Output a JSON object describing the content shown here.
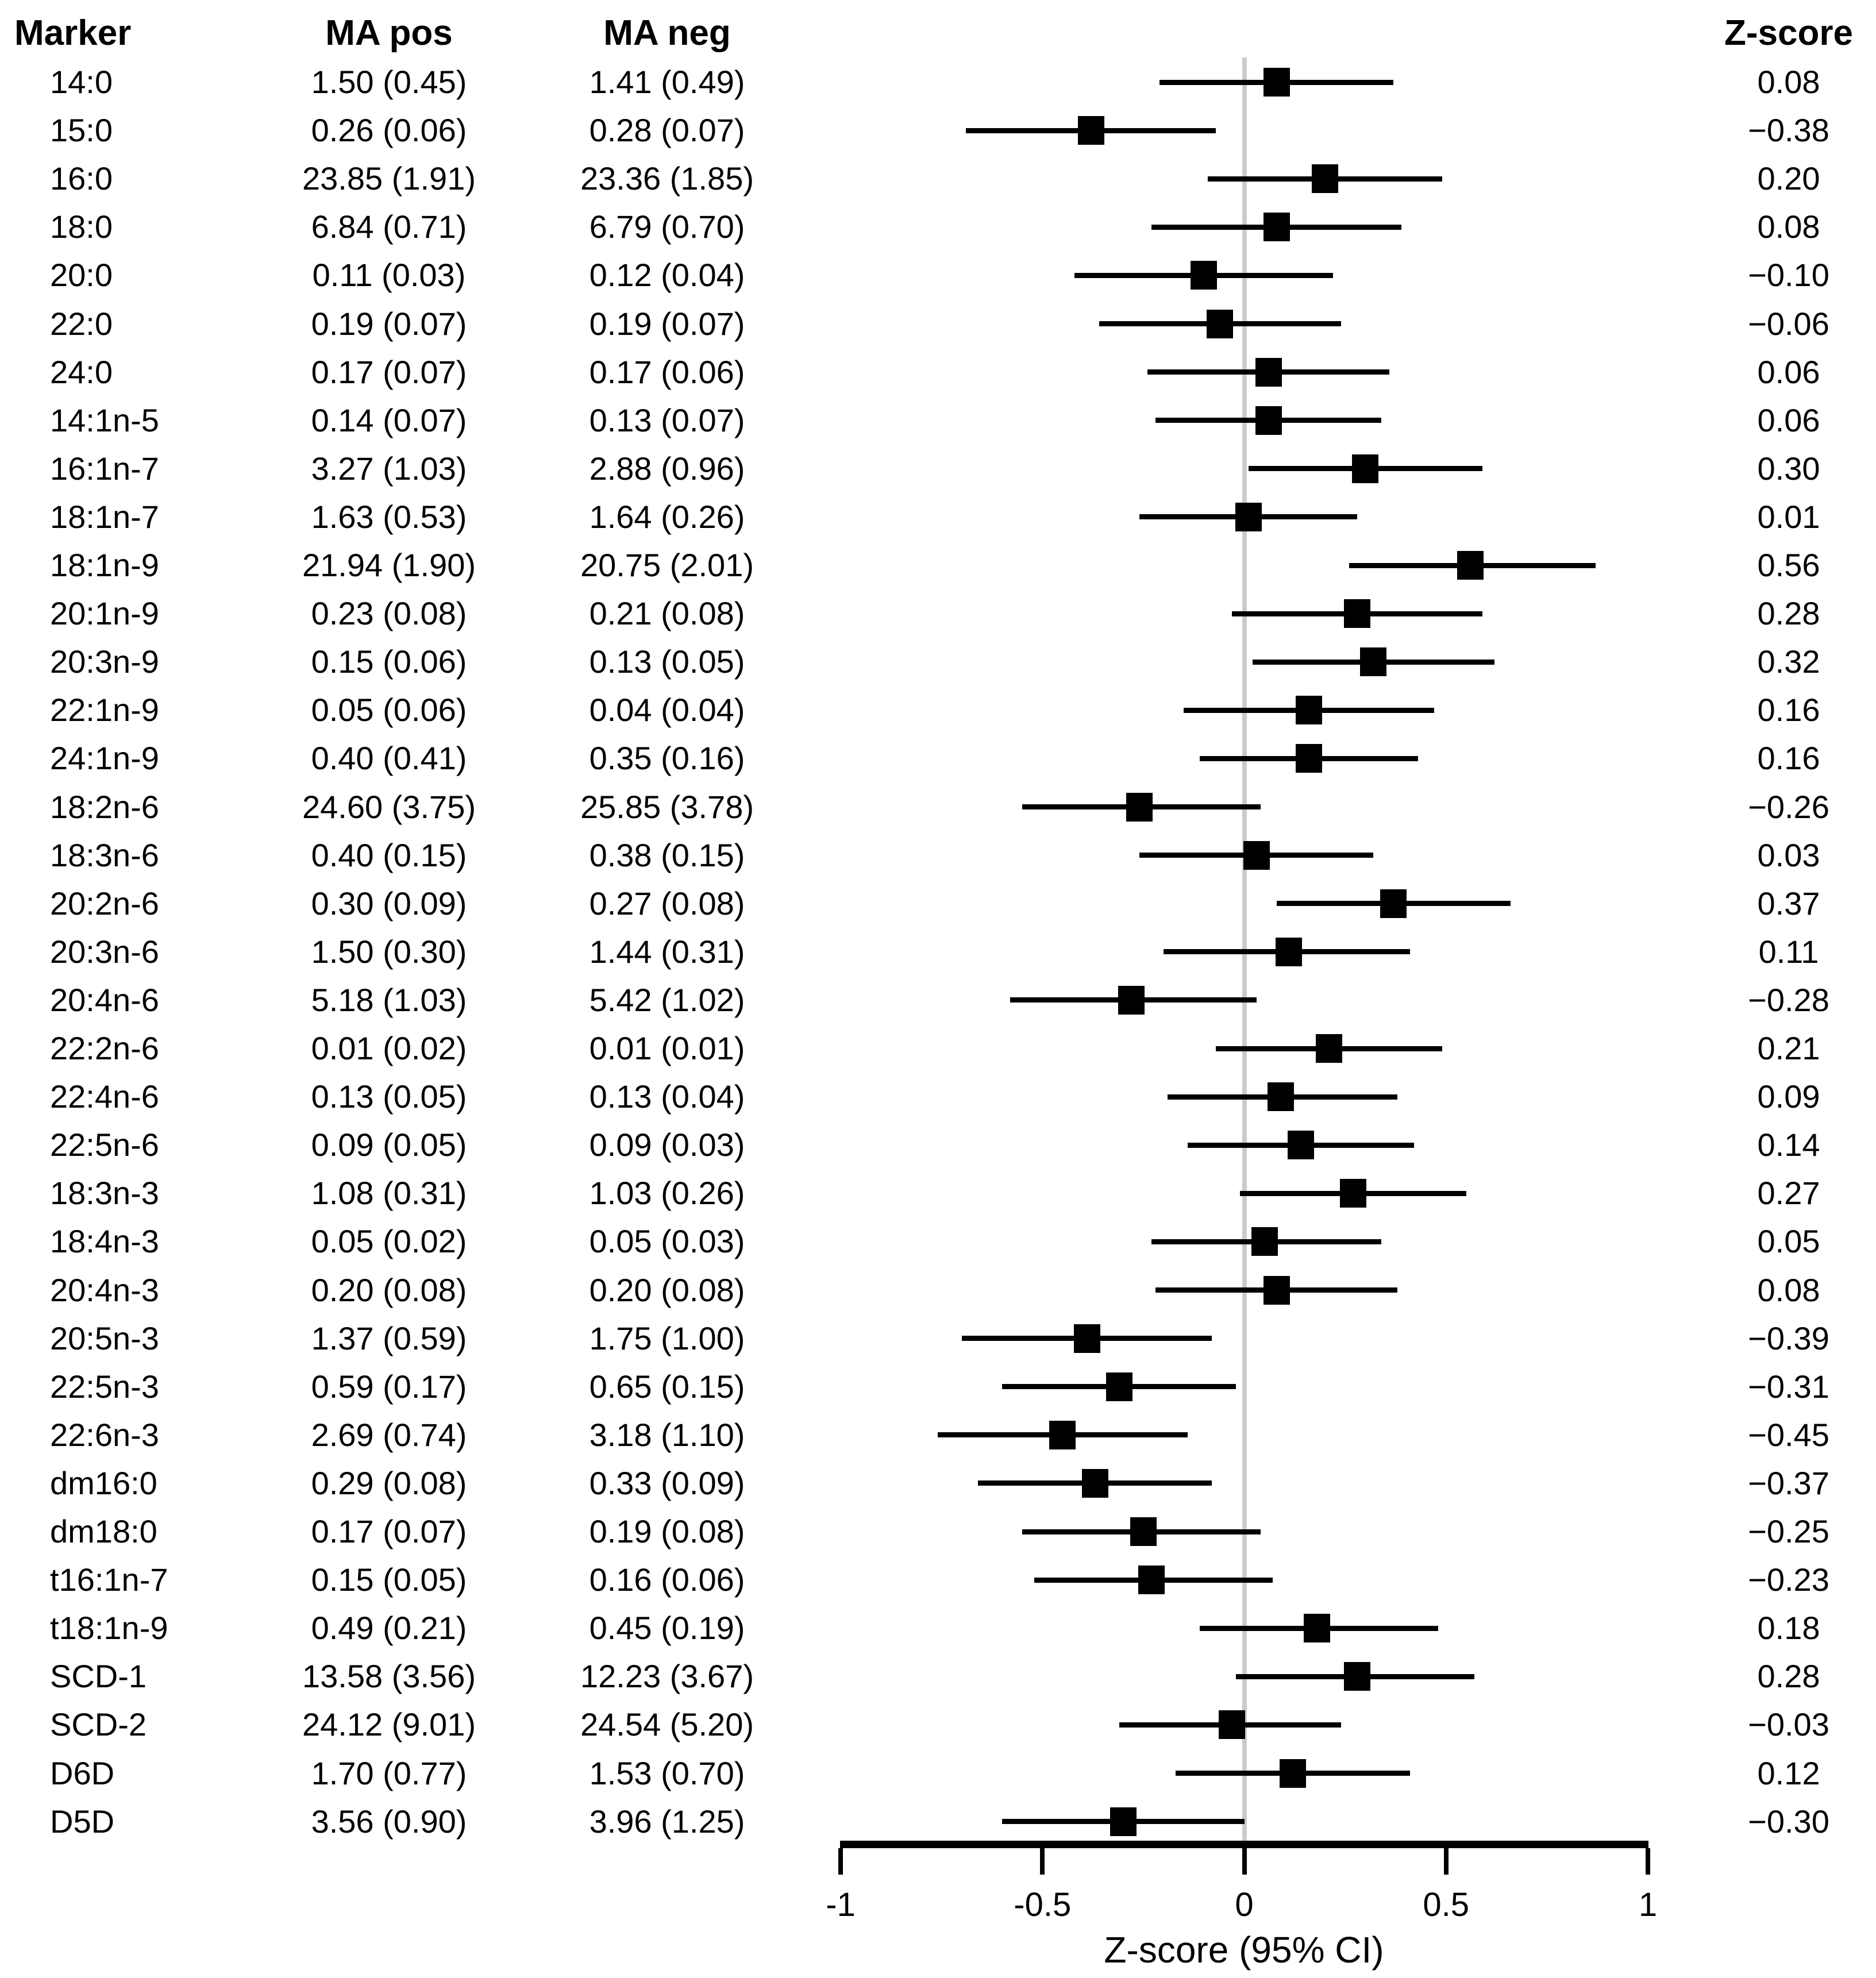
{
  "header": {
    "marker": "Marker",
    "ma_pos": "MA pos",
    "ma_neg": "MA neg",
    "z_score": "Z-score"
  },
  "colors": {
    "text": "#000000",
    "square": "#000000",
    "ci_line": "#000000",
    "zero_line": "#cbcbcb",
    "axis": "#000000"
  },
  "chart_data": {
    "type": "forest",
    "columns": [
      "Marker",
      "MA pos",
      "MA neg",
      "Z-score"
    ],
    "xlabel": "Z-score (95% CI)",
    "xlim": [
      -1,
      1
    ],
    "zero_line": 0,
    "grid": false,
    "xticks": [
      {
        "value": -1,
        "label": "-1"
      },
      {
        "value": -0.5,
        "label": "-0.5"
      },
      {
        "value": 0,
        "label": "0"
      },
      {
        "value": 0.5,
        "label": "0.5"
      },
      {
        "value": 1,
        "label": "1"
      }
    ],
    "rows": [
      {
        "marker": "14:0",
        "ma_pos": "1.50 (0.45)",
        "ma_neg": "1.41 (0.49)",
        "z": 0.08,
        "ci": [
          -0.21,
          0.37
        ],
        "z_label": "0.08"
      },
      {
        "marker": "15:0",
        "ma_pos": "0.26 (0.06)",
        "ma_neg": "0.28 (0.07)",
        "z": -0.38,
        "ci": [
          -0.69,
          -0.07
        ],
        "z_label": "−0.38"
      },
      {
        "marker": "16:0",
        "ma_pos": "23.85 (1.91)",
        "ma_neg": "23.36 (1.85)",
        "z": 0.2,
        "ci": [
          -0.09,
          0.49
        ],
        "z_label": "0.20"
      },
      {
        "marker": "18:0",
        "ma_pos": "6.84 (0.71)",
        "ma_neg": "6.79 (0.70)",
        "z": 0.08,
        "ci": [
          -0.23,
          0.39
        ],
        "z_label": "0.08"
      },
      {
        "marker": "20:0",
        "ma_pos": "0.11 (0.03)",
        "ma_neg": "0.12 (0.04)",
        "z": -0.1,
        "ci": [
          -0.42,
          0.22
        ],
        "z_label": "−0.10"
      },
      {
        "marker": "22:0",
        "ma_pos": "0.19 (0.07)",
        "ma_neg": "0.19 (0.07)",
        "z": -0.06,
        "ci": [
          -0.36,
          0.24
        ],
        "z_label": "−0.06"
      },
      {
        "marker": "24:0",
        "ma_pos": "0.17 (0.07)",
        "ma_neg": "0.17 (0.06)",
        "z": 0.06,
        "ci": [
          -0.24,
          0.36
        ],
        "z_label": "0.06"
      },
      {
        "marker": "14:1n-5",
        "ma_pos": "0.14 (0.07)",
        "ma_neg": "0.13 (0.07)",
        "z": 0.06,
        "ci": [
          -0.22,
          0.34
        ],
        "z_label": "0.06"
      },
      {
        "marker": "16:1n-7",
        "ma_pos": "3.27 (1.03)",
        "ma_neg": "2.88 (0.96)",
        "z": 0.3,
        "ci": [
          0.01,
          0.59
        ],
        "z_label": "0.30"
      },
      {
        "marker": "18:1n-7",
        "ma_pos": "1.63 (0.53)",
        "ma_neg": "1.64 (0.26)",
        "z": 0.01,
        "ci": [
          -0.26,
          0.28
        ],
        "z_label": "0.01"
      },
      {
        "marker": "18:1n-9",
        "ma_pos": "21.94 (1.90)",
        "ma_neg": "20.75 (2.01)",
        "z": 0.56,
        "ci": [
          0.26,
          0.87
        ],
        "z_label": "0.56"
      },
      {
        "marker": "20:1n-9",
        "ma_pos": "0.23 (0.08)",
        "ma_neg": "0.21 (0.08)",
        "z": 0.28,
        "ci": [
          -0.03,
          0.59
        ],
        "z_label": "0.28"
      },
      {
        "marker": "20:3n-9",
        "ma_pos": "0.15 (0.06)",
        "ma_neg": "0.13 (0.05)",
        "z": 0.32,
        "ci": [
          0.02,
          0.62
        ],
        "z_label": "0.32"
      },
      {
        "marker": "22:1n-9",
        "ma_pos": "0.05 (0.06)",
        "ma_neg": "0.04 (0.04)",
        "z": 0.16,
        "ci": [
          -0.15,
          0.47
        ],
        "z_label": "0.16"
      },
      {
        "marker": "24:1n-9",
        "ma_pos": "0.40 (0.41)",
        "ma_neg": "0.35 (0.16)",
        "z": 0.16,
        "ci": [
          -0.11,
          0.43
        ],
        "z_label": "0.16"
      },
      {
        "marker": "18:2n-6",
        "ma_pos": "24.60 (3.75)",
        "ma_neg": "25.85 (3.78)",
        "z": -0.26,
        "ci": [
          -0.55,
          0.04
        ],
        "z_label": "−0.26"
      },
      {
        "marker": "18:3n-6",
        "ma_pos": "0.40 (0.15)",
        "ma_neg": "0.38 (0.15)",
        "z": 0.03,
        "ci": [
          -0.26,
          0.32
        ],
        "z_label": "0.03"
      },
      {
        "marker": "20:2n-6",
        "ma_pos": "0.30 (0.09)",
        "ma_neg": "0.27 (0.08)",
        "z": 0.37,
        "ci": [
          0.08,
          0.66
        ],
        "z_label": "0.37"
      },
      {
        "marker": "20:3n-6",
        "ma_pos": "1.50 (0.30)",
        "ma_neg": "1.44 (0.31)",
        "z": 0.11,
        "ci": [
          -0.2,
          0.41
        ],
        "z_label": "0.11"
      },
      {
        "marker": "20:4n-6",
        "ma_pos": "5.18 (1.03)",
        "ma_neg": "5.42 (1.02)",
        "z": -0.28,
        "ci": [
          -0.58,
          0.03
        ],
        "z_label": "−0.28"
      },
      {
        "marker": "22:2n-6",
        "ma_pos": "0.01 (0.02)",
        "ma_neg": "0.01 (0.01)",
        "z": 0.21,
        "ci": [
          -0.07,
          0.49
        ],
        "z_label": "0.21"
      },
      {
        "marker": "22:4n-6",
        "ma_pos": "0.13 (0.05)",
        "ma_neg": "0.13 (0.04)",
        "z": 0.09,
        "ci": [
          -0.19,
          0.38
        ],
        "z_label": "0.09"
      },
      {
        "marker": "22:5n-6",
        "ma_pos": "0.09 (0.05)",
        "ma_neg": "0.09 (0.03)",
        "z": 0.14,
        "ci": [
          -0.14,
          0.42
        ],
        "z_label": "0.14"
      },
      {
        "marker": "18:3n-3",
        "ma_pos": "1.08 (0.31)",
        "ma_neg": "1.03 (0.26)",
        "z": 0.27,
        "ci": [
          -0.01,
          0.55
        ],
        "z_label": "0.27"
      },
      {
        "marker": "18:4n-3",
        "ma_pos": "0.05 (0.02)",
        "ma_neg": "0.05 (0.03)",
        "z": 0.05,
        "ci": [
          -0.23,
          0.34
        ],
        "z_label": "0.05"
      },
      {
        "marker": "20:4n-3",
        "ma_pos": "0.20 (0.08)",
        "ma_neg": "0.20 (0.08)",
        "z": 0.08,
        "ci": [
          -0.22,
          0.38
        ],
        "z_label": "0.08"
      },
      {
        "marker": "20:5n-3",
        "ma_pos": "1.37 (0.59)",
        "ma_neg": "1.75 (1.00)",
        "z": -0.39,
        "ci": [
          -0.7,
          -0.08
        ],
        "z_label": "−0.39"
      },
      {
        "marker": "22:5n-3",
        "ma_pos": "0.59 (0.17)",
        "ma_neg": "0.65 (0.15)",
        "z": -0.31,
        "ci": [
          -0.6,
          -0.02
        ],
        "z_label": "−0.31"
      },
      {
        "marker": "22:6n-3",
        "ma_pos": "2.69 (0.74)",
        "ma_neg": "3.18 (1.10)",
        "z": -0.45,
        "ci": [
          -0.76,
          -0.14
        ],
        "z_label": "−0.45"
      },
      {
        "marker": "dm16:0",
        "ma_pos": "0.29 (0.08)",
        "ma_neg": "0.33 (0.09)",
        "z": -0.37,
        "ci": [
          -0.66,
          -0.08
        ],
        "z_label": "−0.37"
      },
      {
        "marker": "dm18:0",
        "ma_pos": "0.17 (0.07)",
        "ma_neg": "0.19 (0.08)",
        "z": -0.25,
        "ci": [
          -0.55,
          0.04
        ],
        "z_label": "−0.25"
      },
      {
        "marker": "t16:1n-7",
        "ma_pos": "0.15 (0.05)",
        "ma_neg": "0.16 (0.06)",
        "z": -0.23,
        "ci": [
          -0.52,
          0.07
        ],
        "z_label": "−0.23"
      },
      {
        "marker": "t18:1n-9",
        "ma_pos": "0.49 (0.21)",
        "ma_neg": "0.45 (0.19)",
        "z": 0.18,
        "ci": [
          -0.11,
          0.48
        ],
        "z_label": "0.18"
      },
      {
        "marker": "SCD-1",
        "ma_pos": "13.58 (3.56)",
        "ma_neg": "12.23 (3.67)",
        "z": 0.28,
        "ci": [
          -0.02,
          0.57
        ],
        "z_label": "0.28"
      },
      {
        "marker": "SCD-2",
        "ma_pos": "24.12 (9.01)",
        "ma_neg": "24.54 (5.20)",
        "z": -0.03,
        "ci": [
          -0.31,
          0.24
        ],
        "z_label": "−0.03"
      },
      {
        "marker": "D6D",
        "ma_pos": "1.70 (0.77)",
        "ma_neg": "1.53 (0.70)",
        "z": 0.12,
        "ci": [
          -0.17,
          0.41
        ],
        "z_label": "0.12"
      },
      {
        "marker": "D5D",
        "ma_pos": "3.56 (0.90)",
        "ma_neg": "3.96 (1.25)",
        "z": -0.3,
        "ci": [
          -0.6,
          0.0
        ],
        "z_label": "−0.30"
      }
    ]
  }
}
